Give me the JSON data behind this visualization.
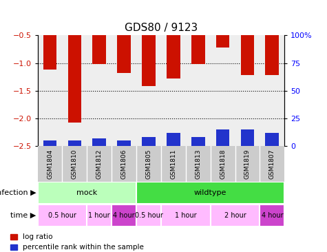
{
  "title": "GDS80 / 9123",
  "samples": [
    "GSM1804",
    "GSM1810",
    "GSM1812",
    "GSM1806",
    "GSM1805",
    "GSM1811",
    "GSM1813",
    "GSM1818",
    "GSM1819",
    "GSM1807"
  ],
  "log_ratios": [
    -1.12,
    -2.08,
    -1.02,
    -1.18,
    -1.42,
    -1.28,
    -1.02,
    -0.72,
    -1.22,
    -1.22
  ],
  "percentile_ranks": [
    5,
    5,
    7,
    5,
    8,
    12,
    8,
    15,
    15,
    12
  ],
  "ylim_left": [
    -2.5,
    -0.5
  ],
  "ylim_right": [
    0,
    100
  ],
  "yticks_left": [
    -2.5,
    -2.0,
    -1.5,
    -1.0,
    -0.5
  ],
  "yticks_right": [
    0,
    25,
    50,
    75,
    100
  ],
  "ytick_labels_right": [
    "0",
    "25",
    "50",
    "75",
    "100%"
  ],
  "bar_color_red": "#cc1100",
  "bar_color_blue": "#2233cc",
  "infection_groups": [
    {
      "label": "mock",
      "start": 0,
      "end": 4,
      "color": "#bbffbb"
    },
    {
      "label": "wildtype",
      "start": 4,
      "end": 10,
      "color": "#44dd44"
    }
  ],
  "time_groups": [
    {
      "label": "0.5 hour",
      "start": 0,
      "end": 2,
      "color": "#ffbbff"
    },
    {
      "label": "1 hour",
      "start": 2,
      "end": 3,
      "color": "#ffbbff"
    },
    {
      "label": "4 hour",
      "start": 3,
      "end": 4,
      "color": "#cc44cc"
    },
    {
      "label": "0.5 hour",
      "start": 4,
      "end": 5,
      "color": "#ffbbff"
    },
    {
      "label": "1 hour",
      "start": 5,
      "end": 7,
      "color": "#ffbbff"
    },
    {
      "label": "2 hour",
      "start": 7,
      "end": 9,
      "color": "#ffbbff"
    },
    {
      "label": "4 hour",
      "start": 9,
      "end": 10,
      "color": "#cc44cc"
    }
  ],
  "xlabel_infection": "infection",
  "xlabel_time": "time",
  "legend_red": "log ratio",
  "legend_blue": "percentile rank within the sample",
  "grid_color": "black",
  "bar_width": 0.55,
  "axis_bg": "#eeeeee",
  "title_fontsize": 11,
  "tick_fontsize": 8,
  "sample_fontsize": 6.5,
  "row_label_fontsize": 8,
  "infection_fontsize": 8,
  "time_fontsize": 7
}
